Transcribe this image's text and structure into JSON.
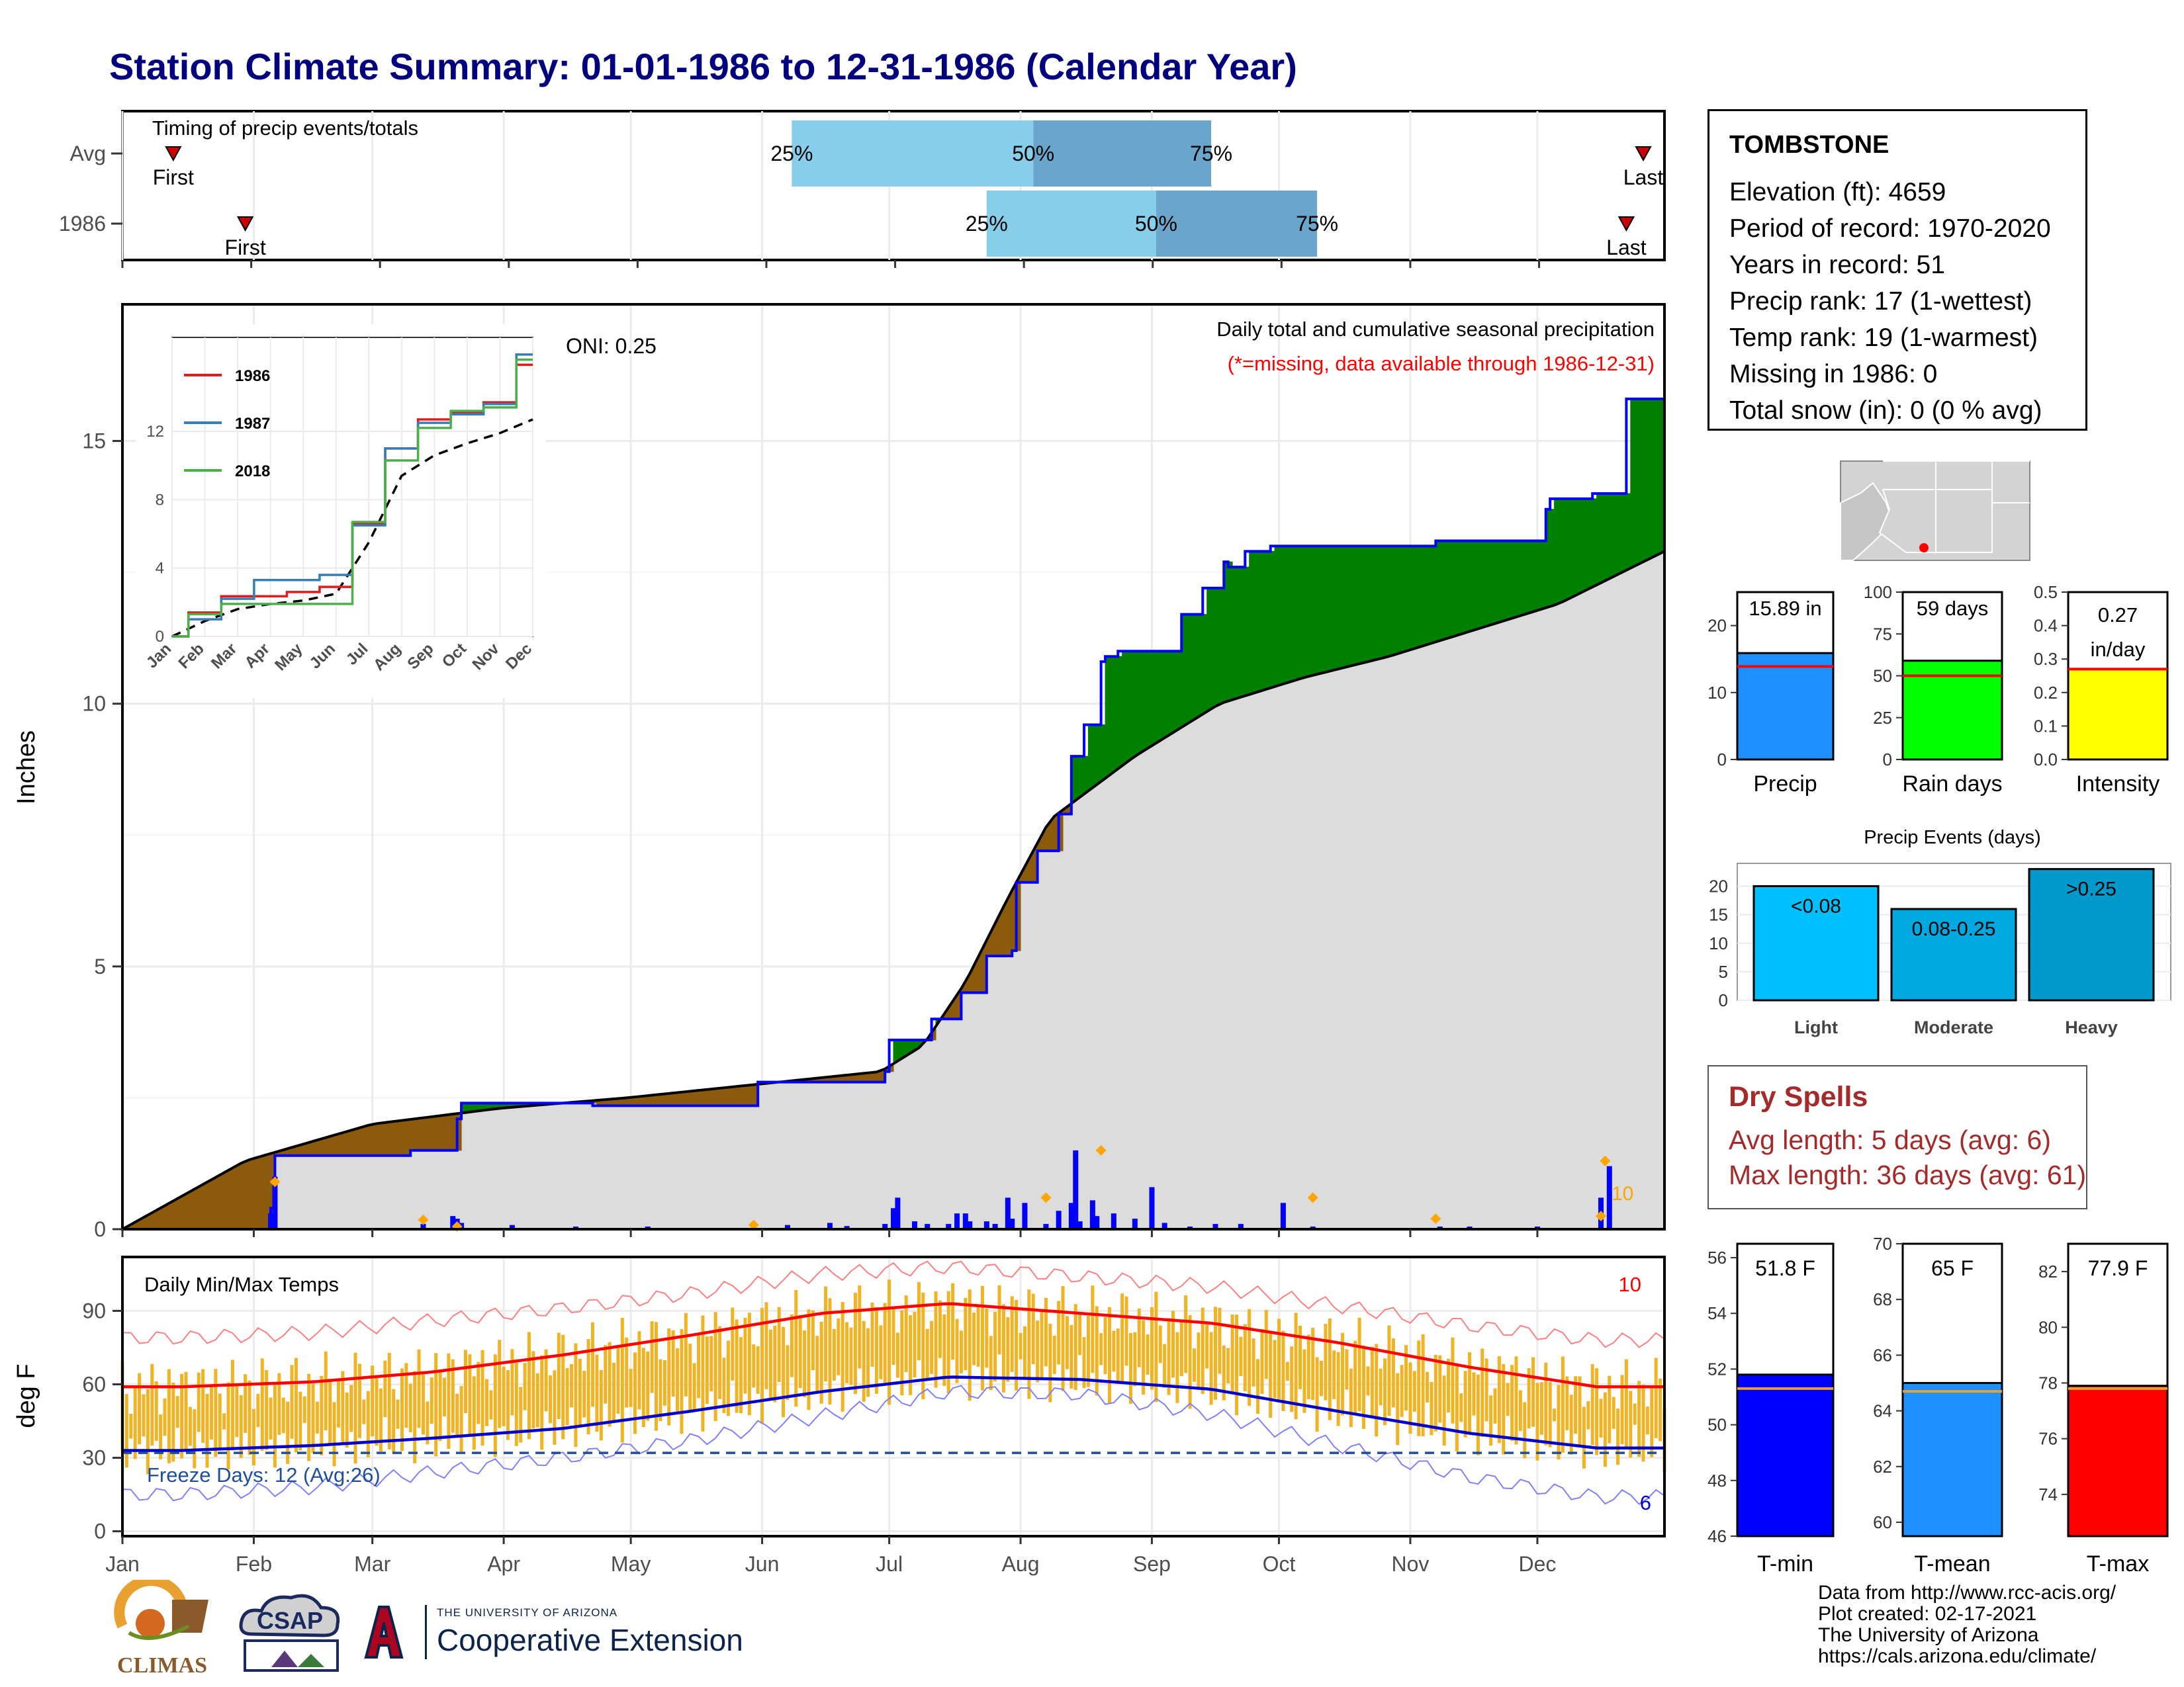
{
  "title": "Station Climate Summary: 01-01-1986 to 12-31-1986 (Calendar Year)",
  "timing": {
    "label": "Timing of precip events/totals",
    "rows": [
      {
        "name": "Avg",
        "first_label": "First",
        "last_label": "Last",
        "first_doy": 13,
        "last_doy": 360,
        "q25_doy": 159,
        "q50_doy": 216,
        "q75_doy": 258,
        "q25_label": "25%",
        "q50_label": "50%",
        "q75_label": "75%"
      },
      {
        "name": "1986",
        "first_label": "First",
        "last_label": "Last",
        "first_doy": 30,
        "last_doy": 356,
        "q25_doy": 205,
        "q50_doy": 245,
        "q75_doy": 283,
        "q25_label": "25%",
        "q50_label": "50%",
        "q75_label": "75%"
      }
    ],
    "colors": {
      "light": "#87ceeb",
      "dark": "#6aa5cc",
      "marker": "#cc0000"
    }
  },
  "station": {
    "name": "TOMBSTONE",
    "lines": [
      "Elevation (ft): 4659",
      "Period of record: 1970-2020",
      "Years in record: 51",
      "Precip rank: 17 (1-wettest)",
      "Temp rank: 19 (1-warmest)",
      "Missing in 1986: 0",
      "Total snow (in): 0 (0 % avg)"
    ]
  },
  "precip_panel": {
    "subtitle": "Daily total and cumulative seasonal precipitation",
    "note": "(*=missing, data available through 1986-12-31)",
    "oni": "ONI: 0.25",
    "ylabel": "Inches",
    "extreme_count": "10",
    "colors": {
      "above": "#008000",
      "below": "#8b5a0b",
      "normal": "#dcdcdc",
      "bars": "#0000ff",
      "extreme": "#ffa500"
    }
  },
  "inset": {
    "legend": [
      {
        "name": "1986",
        "color": "#e41a1c"
      },
      {
        "name": "1987",
        "color": "#377eb8"
      },
      {
        "name": "2018",
        "color": "#4daf4a"
      }
    ],
    "yticks": [
      "0",
      "4",
      "8",
      "12"
    ],
    "xticks": [
      "Jan",
      "Feb",
      "Mar",
      "Apr",
      "May",
      "Jun",
      "Jul",
      "Aug",
      "Sep",
      "Oct",
      "Nov",
      "Dec"
    ]
  },
  "temp_panel": {
    "title": "Daily Min/Max Temps",
    "ylabel": "deg F",
    "freeze_text": "Freeze Days: 12 (Avg:26)",
    "max_extreme_count": "10",
    "min_extreme_count": "6",
    "yticks": [
      "0",
      "30",
      "60",
      "90"
    ],
    "colors": {
      "range": "#f0b323",
      "avg_max": "#ff0000",
      "avg_min": "#0000cc",
      "freeze": "#1f4e9c"
    }
  },
  "months": [
    "Jan",
    "Feb",
    "Mar",
    "Apr",
    "May",
    "Jun",
    "Jul",
    "Aug",
    "Sep",
    "Oct",
    "Nov",
    "Dec"
  ],
  "summary_bars": [
    {
      "label": "Precip",
      "value_text": "15.89 in",
      "value": 15.89,
      "avg": 13.9,
      "ymax": 25,
      "ticks": [
        "0",
        "10",
        "20"
      ],
      "color": "#1e90ff"
    },
    {
      "label": "Rain days",
      "value_text": "59 days",
      "value": 59,
      "avg": 50,
      "ymax": 100,
      "ticks": [
        "0",
        "25",
        "50",
        "75",
        "100"
      ],
      "color": "#00ff00"
    },
    {
      "label": "Intensity",
      "value_text": "0.27 in/day",
      "value": 0.27,
      "avg": 0.27,
      "ymax": 0.5,
      "ticks": [
        "0.0",
        "0.1",
        "0.2",
        "0.3",
        "0.4",
        "0.5"
      ],
      "color": "#ffff00"
    }
  ],
  "events": {
    "title": "Precip Events (days)",
    "ticks": [
      "0",
      "5",
      "10",
      "15",
      "20"
    ],
    "bars": [
      {
        "label": "Light",
        "value_text": "<0.08",
        "value": 20,
        "color": "#00bfff"
      },
      {
        "label": "Moderate",
        "value_text": "0.08-0.25",
        "value": 16,
        "color": "#00a8e0"
      },
      {
        "label": "Heavy",
        "value_text": ">0.25",
        "value": 23,
        "color": "#0099cc"
      }
    ]
  },
  "dry_spells": {
    "title": "Dry Spells",
    "avg_length": "Avg length: 5 days (avg: 6)",
    "max_length": "Max length: 36 days (avg: 61)"
  },
  "temp_bars": [
    {
      "label": "T-min",
      "value_text": "51.8 F",
      "value": 51.8,
      "avg": 51.3,
      "ymin": 46,
      "ymax": 56.5,
      "ticks": [
        "46",
        "48",
        "50",
        "52",
        "54",
        "56"
      ],
      "color": "#0000ff"
    },
    {
      "label": "T-mean",
      "value_text": "65 F",
      "value": 65,
      "avg": 64.7,
      "ymin": 59.5,
      "ymax": 70,
      "ticks": [
        "60",
        "62",
        "64",
        "66",
        "68",
        "70"
      ],
      "color": "#1e90ff"
    },
    {
      "label": "T-max",
      "value_text": "77.9 F",
      "value": 77.9,
      "avg": 77.8,
      "ymin": 72.5,
      "ymax": 83,
      "ticks": [
        "74",
        "76",
        "78",
        "80",
        "82"
      ],
      "color": "#ff0000"
    }
  ],
  "credits": [
    "Data from http://www.rcc-acis.org/",
    "Plot created: 02-17-2021",
    "The University of Arizona",
    "https://cals.arizona.edu/climate/"
  ],
  "logos": {
    "climas": "CLIMAS",
    "csap": "CSAP",
    "coop_small": "THE UNIVERSITY OF ARIZONA",
    "coop_big": "Cooperative Extension"
  },
  "chart_data": [
    {
      "type": "area",
      "title": "Daily total and cumulative seasonal precipitation",
      "ylabel": "Inches",
      "ylim": [
        0,
        17.6
      ],
      "x_units": "day of year 1986",
      "grid": true,
      "cumulative_observed": {
        "x": [
          1,
          30,
          36,
          37,
          69,
          80,
          81,
          112,
          150,
          151,
          181,
          182,
          192,
          199,
          205,
          211,
          212,
          217,
          222,
          225,
          228,
          232,
          233,
          236,
          241,
          251,
          252,
          256,
          261,
          262,
          266,
          272,
          280,
          311,
          337,
          338,
          348,
          356,
          365
        ],
        "y": [
          0.0,
          0.0,
          0.4,
          1.4,
          1.5,
          2.1,
          2.4,
          2.35,
          2.35,
          2.8,
          3.0,
          3.6,
          4.0,
          4.5,
          5.2,
          5.3,
          6.6,
          7.2,
          7.9,
          9.0,
          9.6,
          10.8,
          10.9,
          11.0,
          11.0,
          11.7,
          11.7,
          12.2,
          12.7,
          12.6,
          12.9,
          13.0,
          13.0,
          13.1,
          13.7,
          13.9,
          14.0,
          15.8,
          15.89
        ]
      },
      "cumulative_average": {
        "x": [
          1,
          30,
          60,
          90,
          120,
          150,
          180,
          190,
          200,
          210,
          220,
          230,
          240,
          250,
          260,
          280,
          300,
          320,
          340,
          365
        ],
        "y": [
          0.0,
          1.3,
          2.0,
          2.3,
          2.5,
          2.75,
          3.0,
          3.5,
          4.7,
          6.3,
          7.8,
          8.4,
          9.0,
          9.5,
          10.0,
          10.5,
          10.9,
          11.4,
          11.9,
          12.9
        ]
      },
      "daily_precip": {
        "x": [
          36,
          37,
          72,
          79,
          80,
          81,
          93,
          108,
          125,
          150,
          158,
          168,
          172,
          181,
          183,
          184,
          188,
          191,
          196,
          198,
          200,
          201,
          205,
          207,
          210,
          211,
          214,
          219,
          222,
          225,
          226,
          227,
          230,
          231,
          235,
          240,
          244,
          247,
          253,
          259,
          265,
          275,
          282,
          312,
          319,
          335,
          350,
          352
        ],
        "y": [
          0.3,
          1.0,
          0.1,
          0.25,
          0.2,
          0.12,
          0.08,
          0.05,
          0.05,
          0.02,
          0.08,
          0.12,
          0.06,
          0.1,
          0.4,
          0.6,
          0.15,
          0.1,
          0.1,
          0.3,
          0.3,
          0.15,
          0.15,
          0.1,
          0.6,
          0.2,
          0.5,
          0.1,
          0.35,
          0.5,
          1.5,
          0.15,
          0.55,
          0.25,
          0.3,
          0.2,
          0.8,
          0.12,
          0.05,
          0.1,
          0.1,
          0.5,
          0.05,
          0.05,
          0.05,
          0.05,
          0.6,
          1.2
        ]
      },
      "extreme_marks": {
        "x": [
          37,
          72,
          80,
          150,
          219,
          232,
          282,
          311,
          350,
          351
        ],
        "y": [
          0.9,
          0.18,
          0.05,
          0.08,
          0.6,
          1.5,
          0.6,
          0.2,
          0.25,
          1.3
        ]
      }
    },
    {
      "type": "line",
      "title": "",
      "x_units": "month",
      "categories": [
        "Jan",
        "Feb",
        "Mar",
        "Apr",
        "May",
        "Jun",
        "Jul",
        "Aug",
        "Sep",
        "Oct",
        "Nov",
        "Dec"
      ],
      "ylim": [
        0,
        17.5
      ],
      "series": [
        {
          "name": "1986",
          "values": [
            0.0,
            1.4,
            2.35,
            2.35,
            2.6,
            2.9,
            6.6,
            11.0,
            12.7,
            13.1,
            13.7,
            15.9
          ]
        },
        {
          "name": "1987",
          "values": [
            0.0,
            1.0,
            2.2,
            3.3,
            3.3,
            3.6,
            6.5,
            11.0,
            12.5,
            13.0,
            13.6,
            16.5
          ]
        },
        {
          "name": "2018",
          "values": [
            0.0,
            1.3,
            1.9,
            1.9,
            1.9,
            1.9,
            6.7,
            10.3,
            12.2,
            13.2,
            13.4,
            16.2
          ]
        }
      ],
      "average_dashed": [
        0.0,
        0.9,
        1.6,
        1.9,
        2.1,
        2.5,
        5.5,
        9.4,
        10.6,
        11.3,
        11.9,
        12.7
      ]
    },
    {
      "type": "line",
      "title": "Daily Min/Max Temps",
      "ylabel": "deg F",
      "ylim": [
        -2,
        112
      ],
      "categories": [
        "Jan",
        "Feb",
        "Mar",
        "Apr",
        "May",
        "Jun",
        "Jul",
        "Aug",
        "Sep",
        "Oct",
        "Nov",
        "Dec"
      ],
      "series": [
        {
          "name": "avg max",
          "values": [
            59,
            61,
            65,
            72,
            80,
            89,
            93,
            89,
            85,
            77,
            67,
            59
          ]
        },
        {
          "name": "avg min",
          "values": [
            33,
            35,
            38,
            42,
            49,
            57,
            63,
            62,
            58,
            49,
            40,
            34
          ]
        },
        {
          "name": "record max",
          "values": [
            79,
            81,
            86,
            91,
            97,
            105,
            108,
            104,
            100,
            92,
            84,
            78
          ]
        },
        {
          "name": "record min",
          "values": [
            15,
            18,
            24,
            30,
            37,
            47,
            57,
            56,
            48,
            35,
            22,
            14
          ]
        }
      ],
      "freeze_line": 32
    }
  ]
}
